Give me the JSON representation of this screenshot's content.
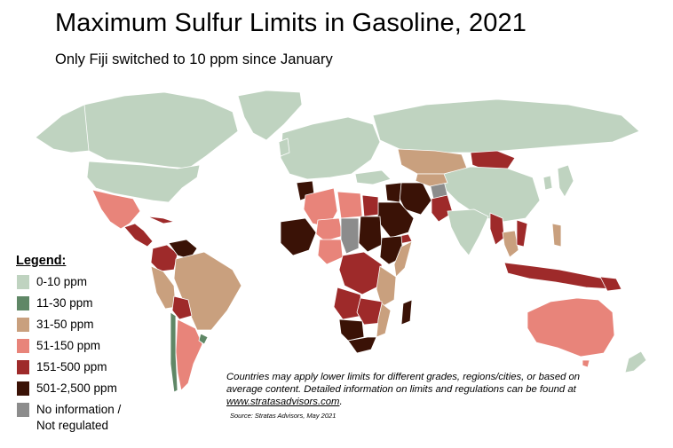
{
  "header": {
    "title": "Maximum Sulfur Limits in Gasoline, 2021",
    "subtitle": "Only Fiji switched to 10 ppm since January"
  },
  "colors": {
    "ocean": "#ffffff",
    "border": "#ffffff",
    "c_0_10": "#bfd3c0",
    "c_11_30": "#5f8766",
    "c_31_50": "#c9a07e",
    "c_51_150": "#e8847a",
    "c_151_500": "#9e2a2a",
    "c_501_2500": "#3a1206",
    "c_none": "#8c8c8c"
  },
  "legend": {
    "title": "Legend:",
    "items": [
      {
        "label": "0-10 ppm",
        "color": "#bfd3c0"
      },
      {
        "label": "11-30 ppm",
        "color": "#5f8766"
      },
      {
        "label": "31-50 ppm",
        "color": "#c9a07e"
      },
      {
        "label": "51-150 ppm",
        "color": "#e8847a"
      },
      {
        "label": "151-500 ppm",
        "color": "#9e2a2a"
      },
      {
        "label": "501-2,500 ppm",
        "color": "#3a1206"
      },
      {
        "label": "No information /\nNot regulated",
        "color": "#8c8c8c"
      }
    ]
  },
  "note": {
    "text": "Countries may apply lower limits for different grades, regions/cities, or based on average content. Detailed information on limits and regulations can be found at ",
    "link": "www.stratasadvisors.com",
    "end": "."
  },
  "source": "Source: Stratas Advisors, May 2021"
}
